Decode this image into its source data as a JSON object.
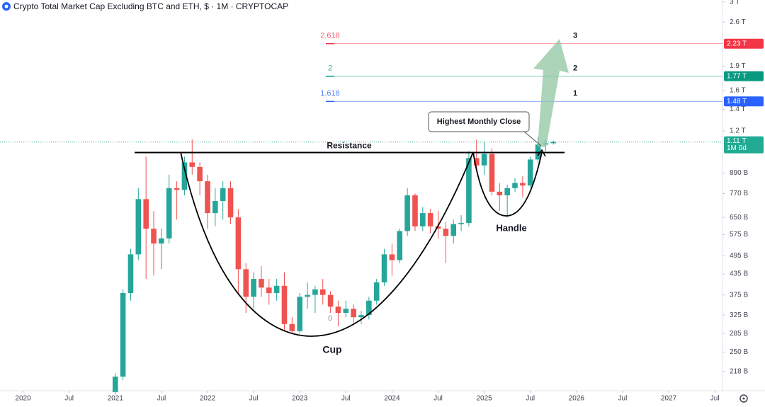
{
  "chart_data": {
    "type": "candlestick",
    "title": "Crypto Total Market Cap Excluding BTC and ETH, $ · 1M · CRYPTOCAP",
    "log_scale": true,
    "up_color": "#26a69a",
    "down_color": "#ef5350",
    "x": [
      "2021-01",
      "2021-02",
      "2021-03",
      "2021-04",
      "2021-05",
      "2021-06",
      "2021-07",
      "2021-08",
      "2021-09",
      "2021-10",
      "2021-11",
      "2021-12",
      "2022-01",
      "2022-02",
      "2022-03",
      "2022-04",
      "2022-05",
      "2022-06",
      "2022-07",
      "2022-08",
      "2022-09",
      "2022-10",
      "2022-11",
      "2022-12",
      "2023-01",
      "2023-02",
      "2023-03",
      "2023-04",
      "2023-05",
      "2023-06",
      "2023-07",
      "2023-08",
      "2023-09",
      "2023-10",
      "2023-11",
      "2023-12",
      "2024-01",
      "2024-02",
      "2024-03",
      "2024-04",
      "2024-05",
      "2024-06",
      "2024-07",
      "2024-08",
      "2024-09",
      "2024-10",
      "2024-11",
      "2024-12",
      "2025-01",
      "2025-02",
      "2025-03",
      "2025-04",
      "2025-05",
      "2025-06",
      "2025-07",
      "2025-08",
      "2025-09",
      "2025-10"
    ],
    "open": [
      188000000000.0,
      210000000000.0,
      380000000000.0,
      500000000000.0,
      740000000000.0,
      600000000000.0,
      540000000000.0,
      560000000000.0,
      800000000000.0,
      790000000000.0,
      960000000000.0,
      930000000000.0,
      840000000000.0,
      670000000000.0,
      730000000000.0,
      800000000000.0,
      650000000000.0,
      450000000000.0,
      370000000000.0,
      420000000000.0,
      395000000000.0,
      380000000000.0,
      400000000000.0,
      305000000000.0,
      290000000000.0,
      370000000000.0,
      375000000000.0,
      390000000000.0,
      375000000000.0,
      345000000000.0,
      330000000000.0,
      340000000000.0,
      320000000000.0,
      325000000000.0,
      360000000000.0,
      410000000000.0,
      500000000000.0,
      480000000000.0,
      590000000000.0,
      760000000000.0,
      610000000000.0,
      670000000000.0,
      610000000000.0,
      600000000000.0,
      570000000000.0,
      620000000000.0,
      625000000000.0,
      990000000000.0,
      940000000000.0,
      1020000000000.0,
      780000000000.0,
      760000000000.0,
      800000000000.0,
      830000000000.0,
      815000000000.0,
      980000000000.0,
      1090000000000.0,
      1100000000000.0
    ],
    "high": [
      215000000000.0,
      390000000000.0,
      520000000000.0,
      800000000000.0,
      1000000000000.0,
      680000000000.0,
      600000000000.0,
      880000000000.0,
      840000000000.0,
      1000000000000.0,
      1130000000000.0,
      960000000000.0,
      880000000000.0,
      800000000000.0,
      840000000000.0,
      840000000000.0,
      690000000000.0,
      470000000000.0,
      440000000000.0,
      460000000000.0,
      420000000000.0,
      420000000000.0,
      440000000000.0,
      320000000000.0,
      380000000000.0,
      410000000000.0,
      400000000000.0,
      420000000000.0,
      385000000000.0,
      360000000000.0,
      360000000000.0,
      350000000000.0,
      335000000000.0,
      370000000000.0,
      420000000000.0,
      520000000000.0,
      540000000000.0,
      600000000000.0,
      800000000000.0,
      770000000000.0,
      700000000000.0,
      690000000000.0,
      680000000000.0,
      630000000000.0,
      640000000000.0,
      660000000000.0,
      1040000000000.0,
      1130000000000.0,
      1110000000000.0,
      1060000000000.0,
      830000000000.0,
      820000000000.0,
      860000000000.0,
      870000000000.0,
      1000000000000.0,
      1150000000000.0,
      1130000000000.0,
      1120000000000.0
    ],
    "low": [
      185000000000.0,
      205000000000.0,
      360000000000.0,
      480000000000.0,
      420000000000.0,
      430000000000.0,
      450000000000.0,
      540000000000.0,
      640000000000.0,
      760000000000.0,
      880000000000.0,
      760000000000.0,
      600000000000.0,
      610000000000.0,
      640000000000.0,
      620000000000.0,
      380000000000.0,
      330000000000.0,
      340000000000.0,
      370000000000.0,
      350000000000.0,
      360000000000.0,
      290000000000.0,
      285000000000.0,
      285000000000.0,
      340000000000.0,
      330000000000.0,
      350000000000.0,
      330000000000.0,
      300000000000.0,
      320000000000.0,
      305000000000.0,
      305000000000.0,
      315000000000.0,
      350000000000.0,
      400000000000.0,
      430000000000.0,
      470000000000.0,
      570000000000.0,
      590000000000.0,
      590000000000.0,
      580000000000.0,
      560000000000.0,
      470000000000.0,
      540000000000.0,
      590000000000.0,
      610000000000.0,
      900000000000.0,
      880000000000.0,
      760000000000.0,
      680000000000.0,
      650000000000.0,
      780000000000.0,
      750000000000.0,
      800000000000.0,
      960000000000.0,
      1040000000000.0,
      1090000000000.0
    ],
    "close": [
      210000000000.0,
      380000000000.0,
      500000000000.0,
      740000000000.0,
      600000000000.0,
      540000000000.0,
      560000000000.0,
      800000000000.0,
      790000000000.0,
      960000000000.0,
      930000000000.0,
      840000000000.0,
      670000000000.0,
      730000000000.0,
      800000000000.0,
      650000000000.0,
      450000000000.0,
      370000000000.0,
      420000000000.0,
      395000000000.0,
      380000000000.0,
      400000000000.0,
      305000000000.0,
      290000000000.0,
      370000000000.0,
      375000000000.0,
      390000000000.0,
      375000000000.0,
      345000000000.0,
      330000000000.0,
      340000000000.0,
      320000000000.0,
      325000000000.0,
      360000000000.0,
      410000000000.0,
      500000000000.0,
      480000000000.0,
      590000000000.0,
      760000000000.0,
      610000000000.0,
      670000000000.0,
      610000000000.0,
      600000000000.0,
      570000000000.0,
      620000000000.0,
      625000000000.0,
      990000000000.0,
      940000000000.0,
      1020000000000.0,
      780000000000.0,
      760000000000.0,
      800000000000.0,
      830000000000.0,
      815000000000.0,
      980000000000.0,
      1090000000000.0,
      1100000000000.0,
      1110000000000.0
    ],
    "xlim": [
      "2019-10",
      "2027-08"
    ],
    "xticks": [
      {
        "value": "2020-01",
        "label": "2020"
      },
      {
        "value": "2020-07",
        "label": "Jul"
      },
      {
        "value": "2021-01",
        "label": "2021"
      },
      {
        "value": "2021-07",
        "label": "Jul"
      },
      {
        "value": "2022-01",
        "label": "2022"
      },
      {
        "value": "2022-07",
        "label": "Jul"
      },
      {
        "value": "2023-01",
        "label": "2023"
      },
      {
        "value": "2023-07",
        "label": "Jul"
      },
      {
        "value": "2024-01",
        "label": "2024"
      },
      {
        "value": "2024-07",
        "label": "Jul"
      },
      {
        "value": "2025-01",
        "label": "2025"
      },
      {
        "value": "2025-07",
        "label": "Jul"
      },
      {
        "value": "2026-01",
        "label": "2026"
      },
      {
        "value": "2026-07",
        "label": "Jul"
      },
      {
        "value": "2027-01",
        "label": "2027"
      },
      {
        "value": "2027-07",
        "label": "Jul"
      }
    ],
    "ylim": [
      190000000000.0,
      3040000000000.0
    ],
    "yticks": [
      {
        "value": 3000000000000.0,
        "label": "3 T"
      },
      {
        "value": 2600000000000.0,
        "label": "2.6 T"
      },
      {
        "value": 1900000000000.0,
        "label": "1.9 T"
      },
      {
        "value": 1600000000000.0,
        "label": "1.6 T"
      },
      {
        "value": 1400000000000.0,
        "label": "1.4 T"
      },
      {
        "value": 1200000000000.0,
        "label": "1.2 T"
      },
      {
        "value": 890000000000.0,
        "label": "890 B"
      },
      {
        "value": 770000000000.0,
        "label": "770 B"
      },
      {
        "value": 650000000000.0,
        "label": "650 B"
      },
      {
        "value": 575000000000.0,
        "label": "575 B"
      },
      {
        "value": 495000000000.0,
        "label": "495 B"
      },
      {
        "value": 435000000000.0,
        "label": "435 B"
      },
      {
        "value": 375000000000.0,
        "label": "375 B"
      },
      {
        "value": 325000000000.0,
        "label": "325 B"
      },
      {
        "value": 285000000000.0,
        "label": "285 B"
      },
      {
        "value": 250000000000.0,
        "label": "250 B"
      },
      {
        "value": 218000000000.0,
        "label": "218 B"
      }
    ],
    "fib_levels": [
      {
        "ratio": 2.618,
        "price": 2230000000000.0,
        "price_label": "2.23 T",
        "target": "3",
        "color": "#f23645"
      },
      {
        "ratio": 2,
        "price": 1770000000000.0,
        "price_label": "1.77 T",
        "target": "2",
        "color": "#089981"
      },
      {
        "ratio": 1.618,
        "price": 1480000000000.0,
        "price_label": "1.48 T",
        "target": "1",
        "color": "#2962ff"
      },
      {
        "ratio": 0,
        "price": 300000000000.0,
        "color": "#787b86"
      }
    ],
    "current_price": {
      "price": 1110000000000.0,
      "label": "1.11 T",
      "countdown": "1M 0d",
      "color": "#22ab94"
    },
    "resistance": {
      "label": "Resistance",
      "price": 1030000000000.0
    },
    "annotations": {
      "cup": "Cup",
      "handle": "Handle",
      "highest_close": "Highest Monthly Close"
    }
  }
}
